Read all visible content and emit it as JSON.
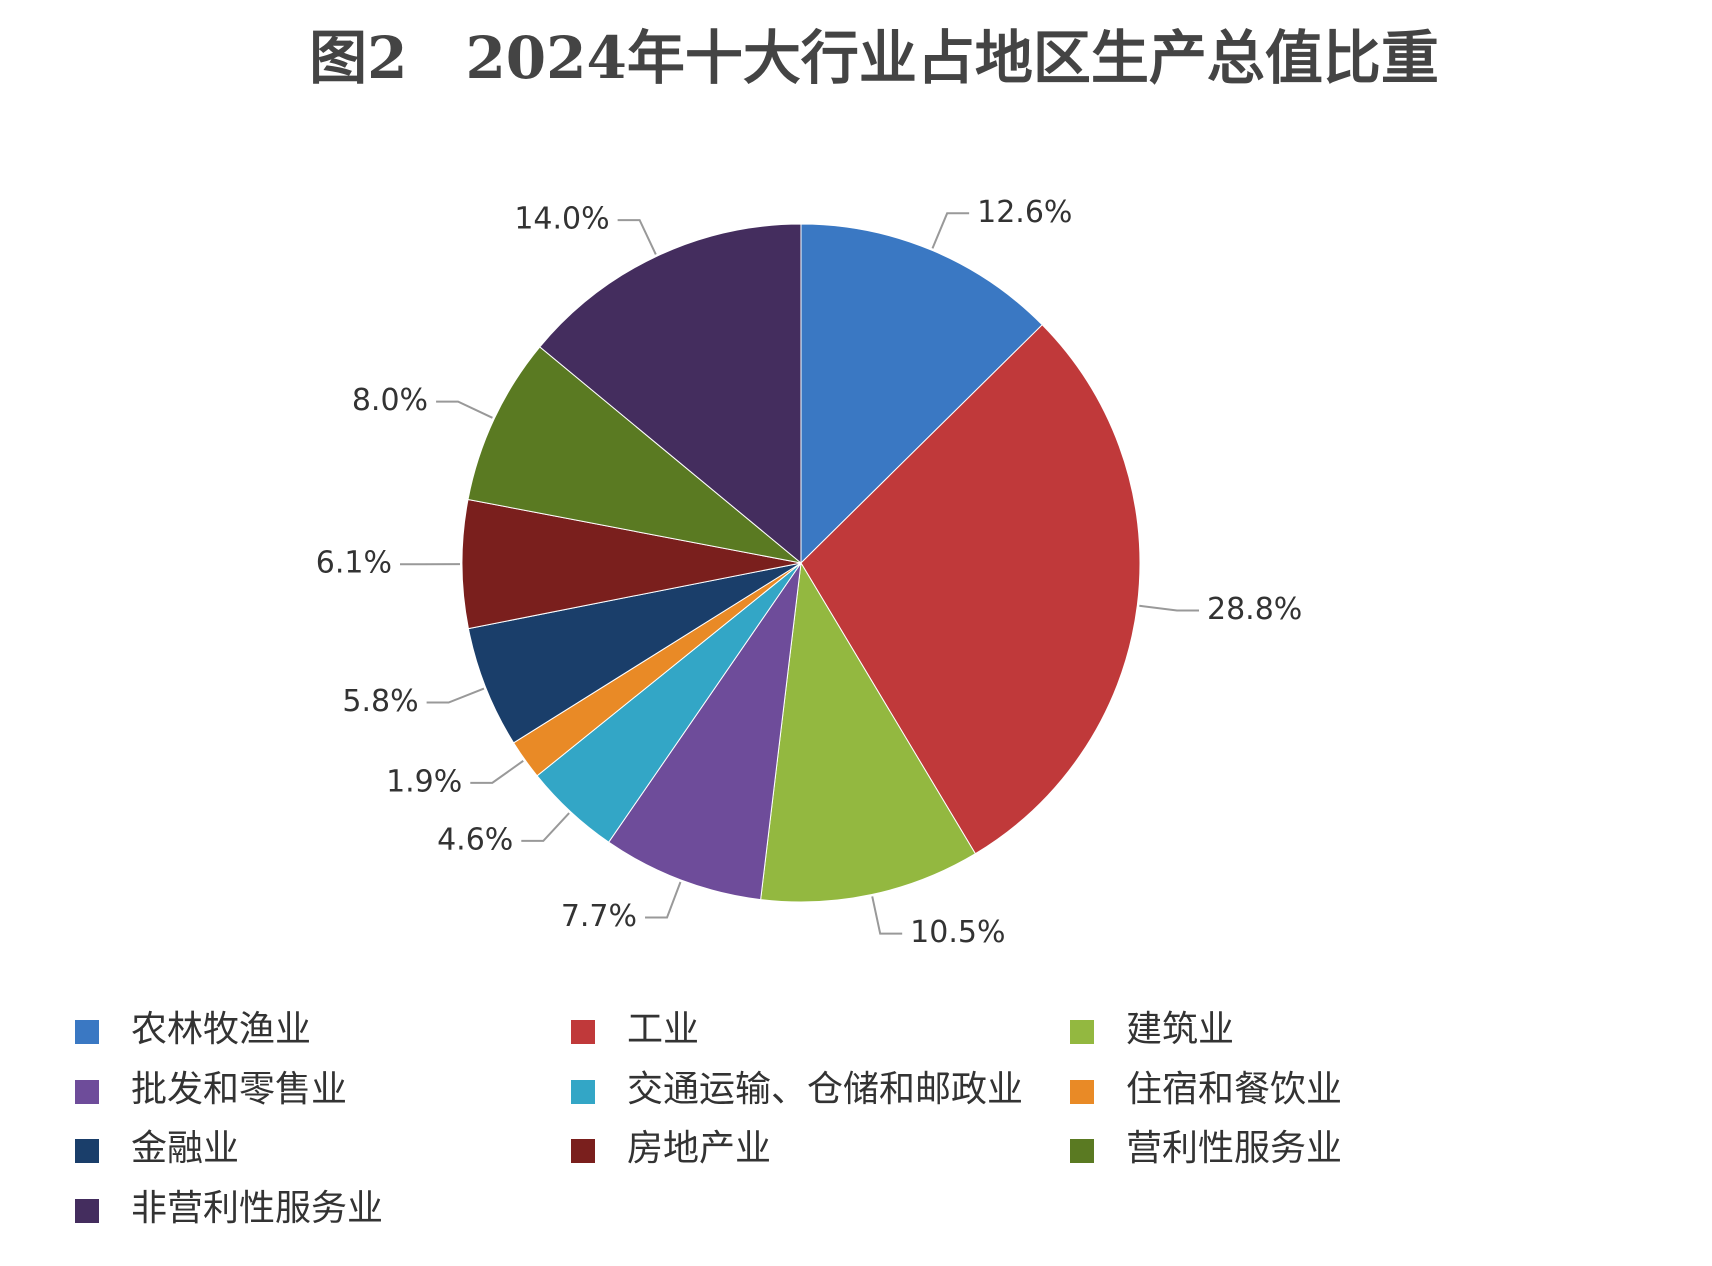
{
  "chart_data": {
    "type": "pie",
    "title": "图2　2024年十大行业占地区生产总值比重",
    "categories": [
      "农林牧渔业",
      "工业",
      "建筑业",
      "批发和零售业",
      "交通运输、仓储和邮政业",
      "住宿和餐饮业",
      "金融业",
      "房地产业",
      "营利性服务业",
      "非营利性服务业"
    ],
    "values": [
      12.6,
      28.8,
      10.5,
      7.7,
      4.6,
      1.9,
      5.8,
      6.1,
      8.0,
      14.0
    ],
    "value_labels": [
      "12.6%",
      "28.8%",
      "10.5%",
      "7.7%",
      "4.6%",
      "1.9%",
      "5.8%",
      "6.1%",
      "8.0%",
      "14.0%"
    ],
    "colors": [
      "#3a78c3",
      "#c0393a",
      "#93b840",
      "#6e4c9a",
      "#33a6c6",
      "#e98a26",
      "#1a3e6a",
      "#7a1f1d",
      "#5a7a22",
      "#442d5e"
    ],
    "legend": "bottom"
  }
}
